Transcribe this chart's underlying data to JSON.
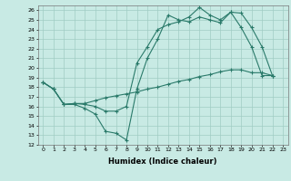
{
  "xlabel": "Humidex (Indice chaleur)",
  "xlim": [
    -0.5,
    23.5
  ],
  "ylim": [
    12,
    26.5
  ],
  "yticks": [
    12,
    13,
    14,
    15,
    16,
    17,
    18,
    19,
    20,
    21,
    22,
    23,
    24,
    25,
    26
  ],
  "xticks": [
    0,
    1,
    2,
    3,
    4,
    5,
    6,
    7,
    8,
    9,
    10,
    11,
    12,
    13,
    14,
    15,
    16,
    17,
    18,
    19,
    20,
    21,
    22,
    23
  ],
  "background_color": "#c8eae4",
  "grid_color": "#a0ccc4",
  "line_color": "#2a7a6a",
  "line1_x": [
    0,
    1,
    2,
    3,
    4,
    5,
    6,
    7,
    8,
    9,
    10,
    11,
    12,
    13,
    14,
    15,
    16,
    17,
    18,
    19,
    20,
    21,
    22
  ],
  "line1_y": [
    18.5,
    17.8,
    16.2,
    16.2,
    15.8,
    15.2,
    13.4,
    13.2,
    12.5,
    17.8,
    21.0,
    23.0,
    25.5,
    25.0,
    24.8,
    25.3,
    25.0,
    24.7,
    25.8,
    25.7,
    24.2,
    22.2,
    19.2
  ],
  "line2_x": [
    0,
    1,
    2,
    3,
    4,
    5,
    6,
    7,
    8,
    9,
    10,
    11,
    12,
    13,
    14,
    15,
    16,
    17,
    18,
    19,
    20,
    21,
    22
  ],
  "line2_y": [
    18.5,
    17.8,
    16.2,
    16.3,
    16.2,
    16.0,
    15.5,
    15.5,
    16.0,
    20.5,
    22.2,
    24.0,
    24.5,
    24.8,
    25.3,
    26.3,
    25.5,
    25.0,
    25.8,
    24.2,
    22.2,
    19.2,
    19.2
  ],
  "line3_x": [
    0,
    1,
    2,
    3,
    4,
    5,
    6,
    7,
    8,
    9,
    10,
    11,
    12,
    13,
    14,
    15,
    16,
    17,
    18,
    19,
    20,
    21,
    22
  ],
  "line3_y": [
    18.5,
    17.8,
    16.2,
    16.3,
    16.3,
    16.6,
    16.9,
    17.1,
    17.3,
    17.5,
    17.8,
    18.0,
    18.3,
    18.6,
    18.8,
    19.1,
    19.3,
    19.6,
    19.8,
    19.8,
    19.5,
    19.5,
    19.2
  ]
}
